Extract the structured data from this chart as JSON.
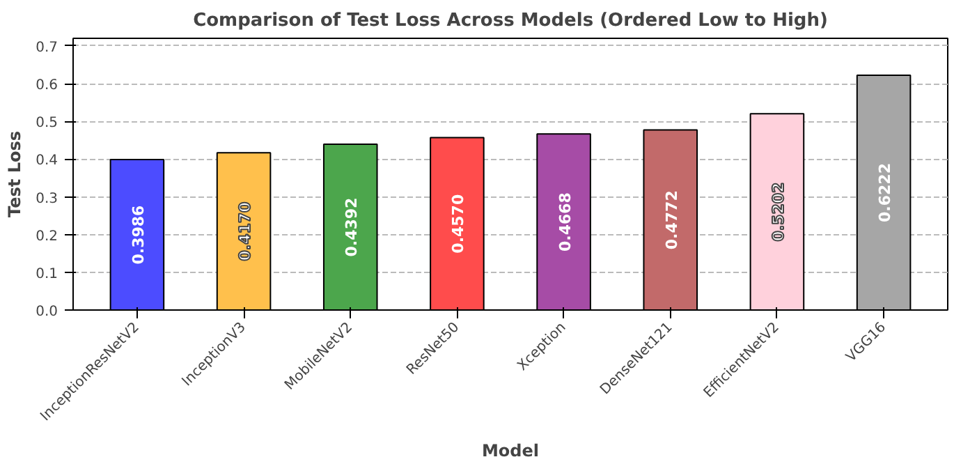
{
  "chart_data": {
    "type": "bar",
    "title": "Comparison of Test Loss Across Models (Ordered Low to High)",
    "xlabel": "Model",
    "ylabel": "Test Loss",
    "categories": [
      "InceptionResNetV2",
      "InceptionV3",
      "MobileNetV2",
      "ResNet50",
      "Xception",
      "DenseNet121",
      "EfficientNetV2",
      "VGG16"
    ],
    "values": [
      0.3986,
      0.417,
      0.4392,
      0.457,
      0.4668,
      0.4772,
      0.5202,
      0.6222
    ],
    "colors": [
      "#4c4cff",
      "#ffc04c",
      "#4ca64c",
      "#ff4c4c",
      "#a64ca6",
      "#c26a6a",
      "#ffd1dc",
      "#a6a6a6"
    ],
    "value_labels": [
      "0.3986",
      "0.4170",
      "0.4392",
      "0.4570",
      "0.4668",
      "0.4772",
      "0.5202",
      "0.6222"
    ],
    "ylim": [
      0,
      0.72
    ],
    "yticks": [
      {
        "value": 0,
        "label": "0.0"
      },
      {
        "value": 0.1,
        "label": "0.1"
      },
      {
        "value": 0.2,
        "label": "0.2"
      },
      {
        "value": 0.3,
        "label": "0.3"
      },
      {
        "value": 0.4,
        "label": "0.4"
      },
      {
        "value": 0.5,
        "label": "0.5"
      },
      {
        "value": 0.6,
        "label": "0.6"
      },
      {
        "value": 0.7,
        "label": "0.7"
      }
    ],
    "grid": "y"
  }
}
